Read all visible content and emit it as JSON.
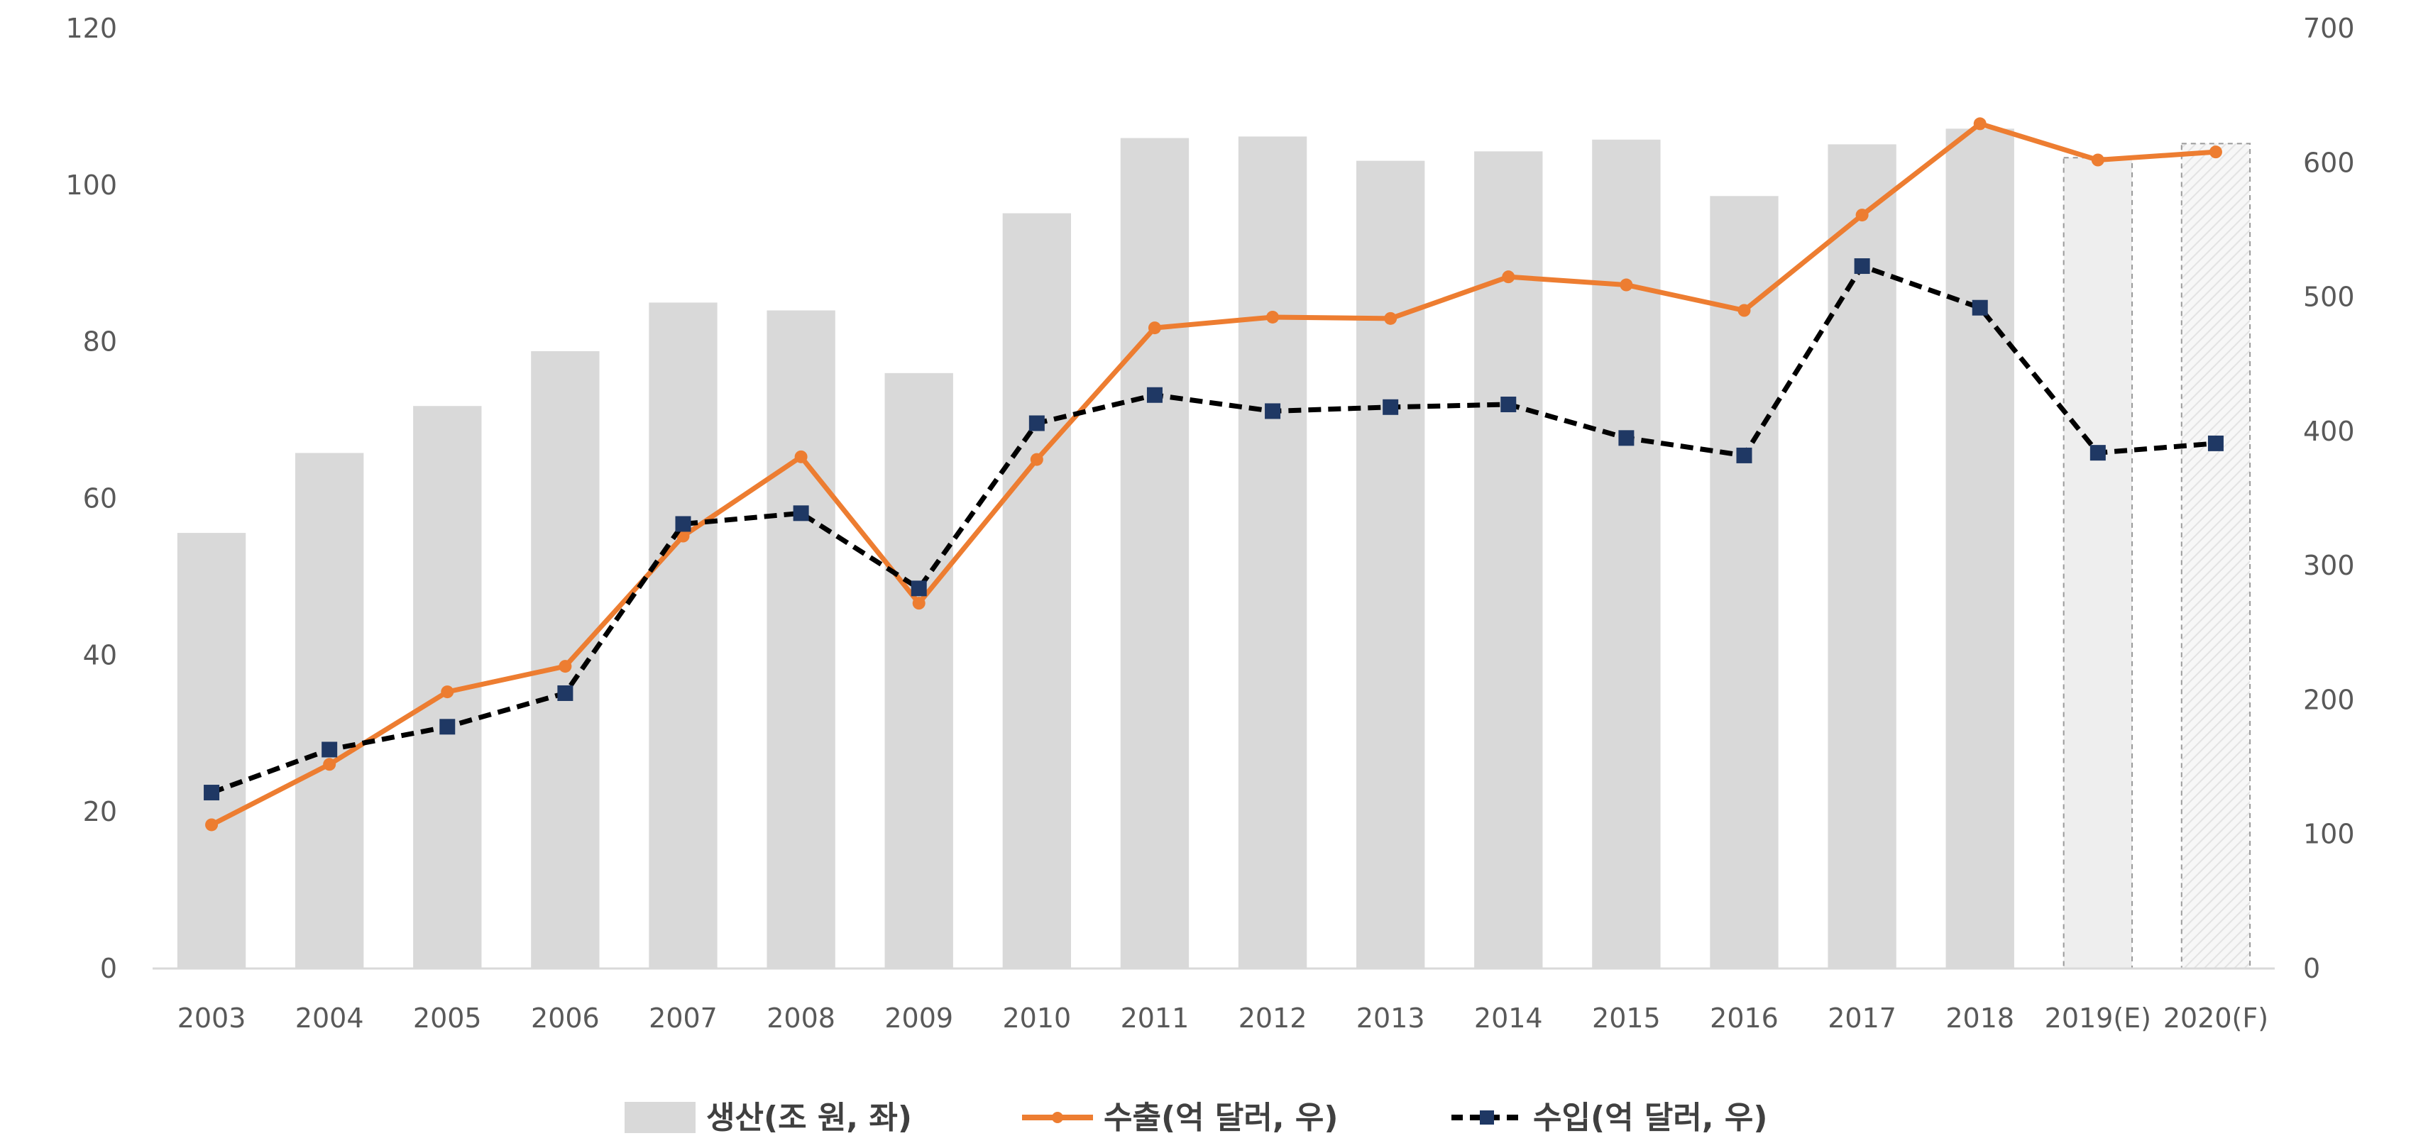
{
  "chart_data": {
    "type": "bar",
    "categories": [
      "2003",
      "2004",
      "2005",
      "2006",
      "2007",
      "2008",
      "2009",
      "2010",
      "2011",
      "2012",
      "2013",
      "2014",
      "2015",
      "2016",
      "2017",
      "2018",
      "2019(E)",
      "2020(F)"
    ],
    "series": [
      {
        "name": "생산(조 원, 좌)",
        "type": "bar",
        "axis": "left",
        "values": [
          55.6,
          65.8,
          71.8,
          78.8,
          85,
          84,
          76,
          96.4,
          106,
          106.2,
          103.1,
          104.3,
          105.8,
          98.6,
          105.2,
          107.2,
          103.5,
          105.3
        ]
      },
      {
        "name": "수출(억 달러, 우)",
        "type": "line",
        "axis": "right",
        "values": [
          107,
          152,
          206,
          225,
          322,
          381,
          272,
          379,
          477,
          485,
          484,
          515,
          509,
          490,
          561,
          629,
          602,
          608
        ]
      },
      {
        "name": "수입(억 달러, 우)",
        "type": "line",
        "axis": "right",
        "values": [
          131,
          163,
          180,
          205,
          331,
          339,
          283,
          406,
          427,
          415,
          418,
          420,
          395,
          382,
          523,
          492,
          384,
          391
        ]
      }
    ],
    "y_left": {
      "range": [
        0,
        120
      ],
      "ticks": [
        "0",
        "20",
        "40",
        "60",
        "80",
        "100",
        "120"
      ]
    },
    "y_right": {
      "range": [
        0,
        700
      ],
      "ticks": [
        "0",
        "100",
        "200",
        "300",
        "400",
        "500",
        "600",
        "700"
      ]
    },
    "styles": {
      "bar_color": "#d9d9d9",
      "export_color": "#ed7d31",
      "import_line_color": "#000000",
      "import_marker_color": "#1f3864"
    },
    "estimated_categories": [
      "2019(E)",
      "2020(F)"
    ],
    "legend": {
      "position": "bottom"
    },
    "grid": false
  }
}
